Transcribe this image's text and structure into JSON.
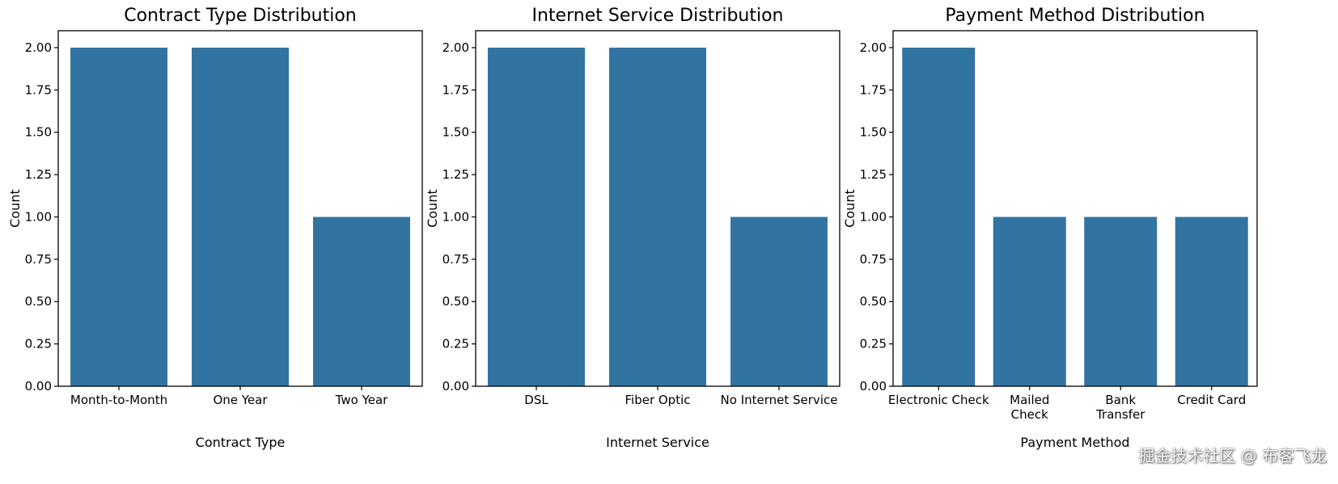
{
  "chart_data": [
    {
      "type": "bar",
      "title": "Contract Type Distribution",
      "xlabel": "Contract Type",
      "ylabel": "Count",
      "categories": [
        "Month-to-Month",
        "One Year",
        "Two Year"
      ],
      "values": [
        2,
        2,
        1
      ],
      "ylim": [
        0,
        2.1
      ],
      "yticks": [
        "0.00",
        "0.25",
        "0.50",
        "0.75",
        "1.00",
        "1.25",
        "1.50",
        "1.75",
        "2.00"
      ],
      "grid": false
    },
    {
      "type": "bar",
      "title": "Internet Service Distribution",
      "xlabel": "Internet Service",
      "ylabel": "Count",
      "categories": [
        "DSL",
        "Fiber Optic",
        "No Internet Service"
      ],
      "values": [
        2,
        2,
        1
      ],
      "ylim": [
        0,
        2.1
      ],
      "yticks": [
        "0.00",
        "0.25",
        "0.50",
        "0.75",
        "1.00",
        "1.25",
        "1.50",
        "1.75",
        "2.00"
      ],
      "grid": false
    },
    {
      "type": "bar",
      "title": "Payment Method Distribution",
      "xlabel": "Payment Method",
      "ylabel": "Count",
      "categories": [
        "Electronic Check",
        "Mailed Check",
        "Bank Transfer",
        "Credit Card"
      ],
      "values": [
        2,
        1,
        1,
        1
      ],
      "ylim": [
        0,
        2.1
      ],
      "yticks": [
        "0.00",
        "0.25",
        "0.50",
        "0.75",
        "1.00",
        "1.25",
        "1.50",
        "1.75",
        "2.00"
      ],
      "grid": false
    }
  ],
  "colors": {
    "bar": "#3274a1",
    "axis": "#000000"
  },
  "watermark": "掘金技术社区 @ 布客飞龙"
}
